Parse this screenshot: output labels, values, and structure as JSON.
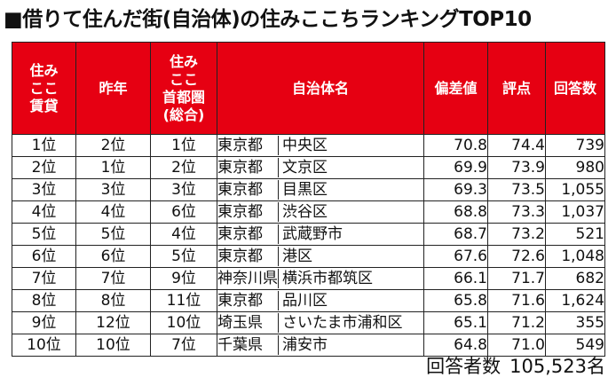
{
  "title": "■借りて住んだ街(自治体)の住みここちランキングTOP10",
  "headers": {
    "rank_rent": "住み\nここ\n賃貸",
    "last_year": "昨年",
    "rank_metro": "住み\nここ\n首都圏\n(総合)",
    "municipality": "自治体名",
    "deviation": "偏差値",
    "score": "評点",
    "respondents": "回答数"
  },
  "rows": [
    {
      "rank": "1位",
      "last_year": "2位",
      "metro": "1位",
      "pref": "東京都",
      "city": "中央区",
      "deviation": "70.8",
      "score": "74.4",
      "count": "739"
    },
    {
      "rank": "2位",
      "last_year": "1位",
      "metro": "2位",
      "pref": "東京都",
      "city": "文京区",
      "deviation": "69.9",
      "score": "73.9",
      "count": "980"
    },
    {
      "rank": "3位",
      "last_year": "3位",
      "metro": "3位",
      "pref": "東京都",
      "city": "目黒区",
      "deviation": "69.3",
      "score": "73.5",
      "count": "1,055"
    },
    {
      "rank": "4位",
      "last_year": "4位",
      "metro": "6位",
      "pref": "東京都",
      "city": "渋谷区",
      "deviation": "68.8",
      "score": "73.3",
      "count": "1,037"
    },
    {
      "rank": "5位",
      "last_year": "5位",
      "metro": "4位",
      "pref": "東京都",
      "city": "武蔵野市",
      "deviation": "68.7",
      "score": "73.2",
      "count": "521"
    },
    {
      "rank": "6位",
      "last_year": "6位",
      "metro": "5位",
      "pref": "東京都",
      "city": "港区",
      "deviation": "67.6",
      "score": "72.6",
      "count": "1,048"
    },
    {
      "rank": "7位",
      "last_year": "7位",
      "metro": "9位",
      "pref": "神奈川県",
      "city": "横浜市都筑区",
      "deviation": "66.1",
      "score": "71.7",
      "count": "682"
    },
    {
      "rank": "8位",
      "last_year": "8位",
      "metro": "11位",
      "pref": "東京都",
      "city": "品川区",
      "deviation": "65.8",
      "score": "71.6",
      "count": "1,624"
    },
    {
      "rank": "9位",
      "last_year": "12位",
      "metro": "10位",
      "pref": "埼玉県",
      "city": "さいたま市浦和区",
      "deviation": "65.1",
      "score": "71.2",
      "count": "355"
    },
    {
      "rank": "10位",
      "last_year": "10位",
      "metro": "7位",
      "pref": "千葉県",
      "city": "浦安市",
      "deviation": "64.8",
      "score": "71.0",
      "count": "549"
    }
  ],
  "footer": {
    "label": "回答者数",
    "value": "105,523名"
  },
  "colors": {
    "header_bg": "#e60012",
    "header_text": "#ffffff",
    "border": "#222222"
  }
}
